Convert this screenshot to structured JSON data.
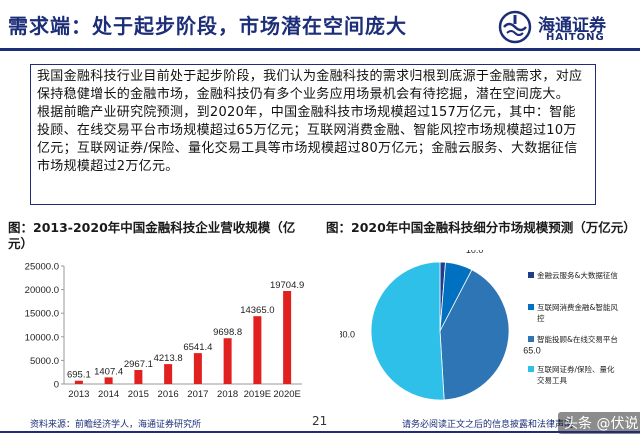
{
  "header": {
    "title": "需求端：处于起步阶段，市场潜在空间庞大",
    "logo": {
      "name_cn": "海通证券",
      "name_en": "HAITONG",
      "icon": "haitong-logo-icon"
    }
  },
  "body_text": {
    "para1": "我国金融科技行业目前处于起步阶段，我们认为金融科技的需求归根到底源于金融需求，对应保持稳健增长的金融市场，金融科技仍有多个业务应用场景机会有待挖掘，潜在空间庞大。",
    "para2": "根据前瞻产业研究院预测，到2020年，中国金融科技市场规模超过157万亿元，其中：智能投顾、在线交易平台市场规模超过65万亿元；互联网消费金融、智能风控市场规模超过10万亿元；互联网证券/保险、量化交易工具等市场规模超过80万亿元；金融云服务、大数据征信市场规模超过2万亿元。"
  },
  "figures": {
    "fig1_title": "图：2013-2020年中国金融科技企业营收规模（亿元）",
    "fig2_title": "图：2020年中国金融科技细分市场规模预测（万亿元）"
  },
  "footer": {
    "source": "资料来源：前瞻经济学人，海通证券研究所",
    "page_number": "21",
    "disclaimer": "请务必阅读正文之后的信息披露和法律声明",
    "watermark": "头条 @伏说"
  },
  "colors": {
    "brand": "#1c2e78",
    "bar": "#e0211f",
    "pie": [
      "#1f3d8c",
      "#0070c0",
      "#2e75b6",
      "#2ec0e8"
    ]
  },
  "chart_data": [
    {
      "type": "bar",
      "categories": [
        "2013",
        "2014",
        "2015",
        "2016",
        "2017",
        "2018",
        "2019E",
        "2020E"
      ],
      "values": [
        695.1,
        1407.4,
        2967.1,
        4213.8,
        6541.4,
        9698.8,
        14365.0,
        19704.9
      ],
      "data_labels": [
        "695.1",
        "1407.4",
        "2967.1",
        "4213.8",
        "6541.4",
        "9698.8",
        "14365.0",
        "19704.9"
      ],
      "yticks": [
        "0",
        "5000.0",
        "10000.0",
        "15000.0",
        "20000.0",
        "25000.0"
      ],
      "ylim": [
        0,
        25000
      ],
      "grid": false,
      "legend": "none"
    },
    {
      "type": "pie",
      "slices": [
        {
          "label": "金融云服务&大数据征信",
          "value": 2.0,
          "value_label": "2.0"
        },
        {
          "label": "互联网消费金融&智能风控",
          "value": 10.0,
          "value_label": "10.0"
        },
        {
          "label": "智能投顾&在线交易平台",
          "value": 65.0,
          "value_label": "65.0"
        },
        {
          "label": "互联网证券/保险、量化交易工具",
          "value": 80.0,
          "value_label": "80.0"
        }
      ],
      "legend_placement": "right"
    }
  ]
}
